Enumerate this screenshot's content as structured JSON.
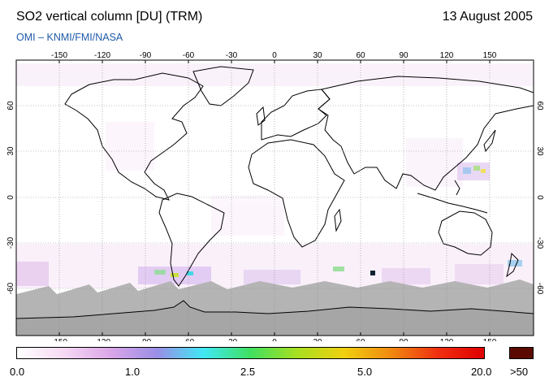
{
  "header": {
    "title": "SO2 vertical column [DU] (TRM)",
    "date": "13 August 2005",
    "subtitle": "OMI  –  KNMI/FMI/NASA"
  },
  "map": {
    "lon_ticks": [
      "-150",
      "-120",
      "-90",
      "-60",
      "-30",
      "0",
      "30",
      "60",
      "90",
      "120",
      "150"
    ],
    "lat_ticks": [
      "60",
      "30",
      "0",
      "-30",
      "-60"
    ],
    "colors": {
      "ocean": "#ffffff",
      "polar_night": "#b4b4b4",
      "antarctica": "#a6a6a6",
      "coast": "#000000",
      "grid": "#888888"
    }
  },
  "colorbar": {
    "labels": [
      "0.0",
      "1.0",
      "2.5",
      "5.0",
      "20.0"
    ],
    "max_label": ">50",
    "colors": [
      "#ffffff",
      "#f5d9f3",
      "#dba6e8",
      "#9a8ee6",
      "#40e8f5",
      "#40e060",
      "#a8e020",
      "#f0d010",
      "#f08a10",
      "#f03010",
      "#e00000"
    ],
    "max_color": "#5a0a00"
  }
}
